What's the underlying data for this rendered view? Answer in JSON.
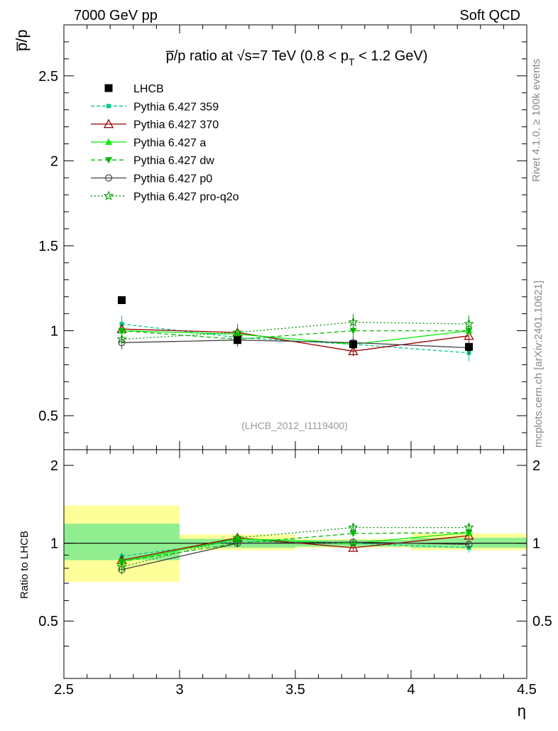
{
  "header": {
    "left_label": "7000 GeV pp",
    "right_label": "Soft QCD"
  },
  "side_labels": {
    "rivet": "Rivet 4.1.0, ≥ 100k events",
    "mcplots": "mcplots.cern.ch [arXiv:2401.10621]"
  },
  "chart_data": [
    {
      "type": "scatter",
      "panel": "main",
      "title_prefix": "p̅/p ratio at √s=7 TeV (0.8 < p",
      "title_sub": "T",
      "title_suffix": " < 1.2 GeV)",
      "ylabel": "p̅/p",
      "xlabel": "η",
      "analysis_label": "(LHCB_2012_I1119400)",
      "xlim": [
        2.5,
        4.5
      ],
      "ylim": [
        0.3,
        2.8
      ],
      "x_ticks": [
        2.5,
        3,
        3.5,
        4,
        4.5
      ],
      "x_tick_labels": [
        "2.5",
        "3",
        "3.5",
        "4",
        "4.5"
      ],
      "y_ticks": [
        0.5,
        1,
        1.5,
        2,
        2.5
      ],
      "y_tick_labels": [
        "0.5",
        "1",
        "1.5",
        "2",
        "2.5"
      ],
      "x": [
        2.75,
        3.25,
        3.75,
        4.25
      ],
      "data": {
        "name": "LHCB",
        "color": "#000000",
        "values": [
          1.18,
          0.945,
          0.92,
          0.905
        ]
      },
      "series": [
        {
          "name": "Pythia 6.427 359",
          "color": "#00cc88",
          "dash": "5,3",
          "marker": "square-small",
          "values": [
            1.04,
            0.96,
            0.92,
            0.87
          ],
          "errors": [
            0.05,
            0.05,
            0.05,
            0.05
          ]
        },
        {
          "name": "Pythia 6.427 370",
          "color": "#990000",
          "dash": "",
          "marker": "triangle-open",
          "values": [
            1.01,
            0.99,
            0.88,
            0.97
          ],
          "errors": [
            0.03,
            0.03,
            0.03,
            0.03
          ]
        },
        {
          "name": "Pythia 6.427 a",
          "color": "#00ee00",
          "dash": "",
          "marker": "triangle-filled",
          "values": [
            1.0,
            0.98,
            0.92,
            1.0
          ],
          "errors": [
            0.03,
            0.03,
            0.03,
            0.03
          ]
        },
        {
          "name": "Pythia 6.427 dw",
          "color": "#00bb00",
          "dash": "6,4",
          "marker": "triangle-down",
          "values": [
            1.0,
            0.95,
            1.0,
            1.0
          ],
          "errors": [
            0.03,
            0.03,
            0.03,
            0.03
          ]
        },
        {
          "name": "Pythia 6.427 p0",
          "color": "#444444",
          "dash": "",
          "marker": "circle-open",
          "values": [
            0.93,
            0.945,
            0.93,
            0.9
          ],
          "errors": [
            0.04,
            0.04,
            0.04,
            0.04
          ]
        },
        {
          "name": "Pythia 6.427 pro-q2o",
          "color": "#009900",
          "dash": "2,3",
          "marker": "star-open",
          "values": [
            0.95,
            0.99,
            1.05,
            1.04
          ],
          "errors": [
            0.05,
            0.05,
            0.05,
            0.05
          ]
        }
      ]
    },
    {
      "type": "scatter",
      "panel": "ratio",
      "ylabel": "Ratio to LHCB",
      "xlim": [
        2.5,
        4.5
      ],
      "ylim": [
        0.3,
        2.3
      ],
      "y_ticks": [
        0.5,
        1,
        2
      ],
      "y_tick_labels": [
        "0.5",
        "1",
        "2"
      ],
      "x": [
        2.75,
        3.25,
        3.75,
        4.25
      ],
      "bins": [
        [
          2.5,
          3.0
        ],
        [
          3.0,
          3.5
        ],
        [
          3.5,
          4.0
        ],
        [
          4.0,
          4.5
        ]
      ],
      "band_inner": [
        [
          0.86,
          1.19
        ],
        [
          0.96,
          1.04
        ],
        [
          0.97,
          1.03
        ],
        [
          0.96,
          1.05
        ]
      ],
      "band_outer": [
        [
          0.71,
          1.4
        ],
        [
          0.94,
          1.08
        ],
        [
          0.96,
          1.04
        ],
        [
          0.94,
          1.09
        ]
      ],
      "band_colors": {
        "inner": "#90ee90",
        "outer": "#ffff99"
      },
      "series": [
        {
          "name": "Pythia 6.427 359",
          "values": [
            0.89,
            1.02,
            1.0,
            0.96
          ]
        },
        {
          "name": "Pythia 6.427 370",
          "values": [
            0.86,
            1.05,
            0.96,
            1.07
          ]
        },
        {
          "name": "Pythia 6.427 a",
          "values": [
            0.85,
            1.04,
            1.0,
            1.1
          ]
        },
        {
          "name": "Pythia 6.427 dw",
          "values": [
            0.85,
            1.0,
            1.09,
            1.1
          ]
        },
        {
          "name": "Pythia 6.427 p0",
          "values": [
            0.79,
            1.0,
            1.01,
            0.99
          ]
        },
        {
          "name": "Pythia 6.427 pro-q2o",
          "values": [
            0.81,
            1.05,
            1.15,
            1.15
          ]
        }
      ]
    }
  ]
}
